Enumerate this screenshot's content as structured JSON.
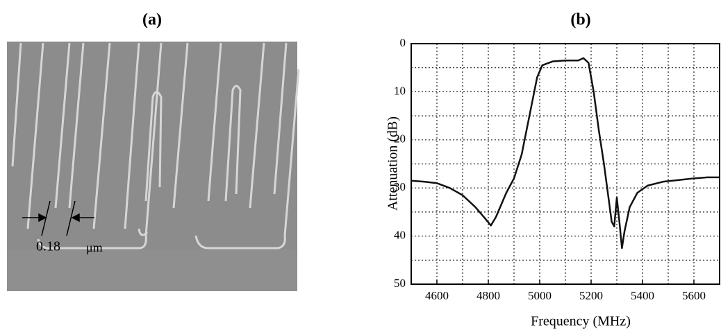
{
  "panel_a": {
    "label": "(a)",
    "annotation_value": "0.18",
    "annotation_unit": "μm"
  },
  "chart_data": {
    "type": "line",
    "panel_label": "(b)",
    "xlabel": "Frequency (MHz)",
    "ylabel": "Attenuation (dB)",
    "x": [
      4500,
      4550,
      4600,
      4650,
      4700,
      4750,
      4790,
      4810,
      4830,
      4850,
      4870,
      4900,
      4930,
      4960,
      4990,
      5010,
      5050,
      5100,
      5150,
      5170,
      5190,
      5210,
      5230,
      5250,
      5265,
      5280,
      5290,
      5300,
      5310,
      5320,
      5330,
      5350,
      5380,
      5420,
      5480,
      5550,
      5600,
      5650,
      5700
    ],
    "series": [
      {
        "name": "Attenuation",
        "color": "#111111",
        "values": [
          28.5,
          28.7,
          29,
          30,
          31.5,
          34,
          36.5,
          37.8,
          36,
          33.5,
          31,
          28,
          23,
          15,
          7,
          4.5,
          3.7,
          3.5,
          3.5,
          3,
          4,
          10,
          18,
          25,
          31,
          37,
          38,
          32,
          37,
          42.5,
          39,
          34,
          31,
          29.5,
          28.7,
          28.3,
          28,
          27.8,
          27.8
        ]
      }
    ],
    "xlim": [
      4500,
      5700
    ],
    "ylim": [
      0,
      50
    ],
    "y_inverted": true,
    "xticks": [
      4600,
      4800,
      5000,
      5200,
      5400,
      5600
    ],
    "yticks": [
      0,
      10,
      20,
      30,
      40,
      50
    ],
    "x_minor_grid": [
      4500,
      4600,
      4700,
      4800,
      4900,
      5000,
      5100,
      5200,
      5300,
      5400,
      5500,
      5600,
      5700
    ],
    "y_minor_grid": [
      5,
      15,
      25,
      35,
      45
    ],
    "grid": true
  }
}
